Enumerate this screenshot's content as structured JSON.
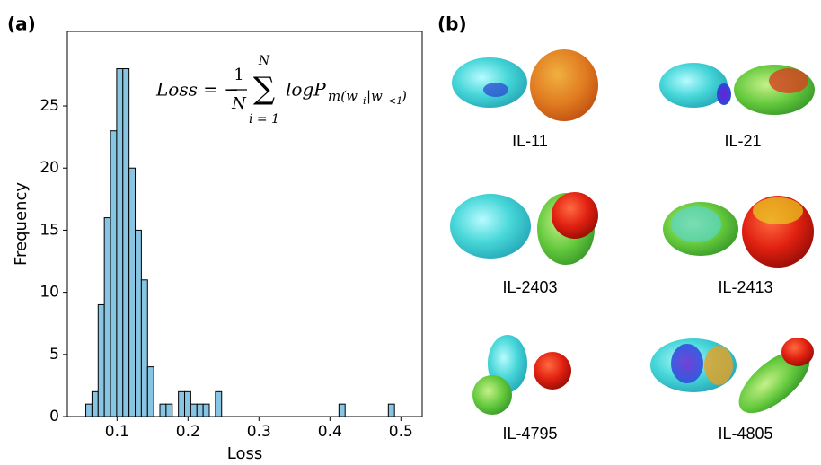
{
  "chart_data": {
    "type": "histogram",
    "panel_label": "(a)",
    "xlabel": "Loss",
    "ylabel": "Frequency",
    "color": "#87c5e3",
    "edgecolor": "#000000",
    "bins": [
      0.056,
      0.0647,
      0.0734,
      0.0821,
      0.0908,
      0.0995,
      0.1082,
      0.1169,
      0.1256,
      0.1343,
      0.143,
      0.1517,
      0.1604,
      0.1691,
      0.1778,
      0.1865,
      0.1952,
      0.2039,
      0.2126,
      0.2213,
      0.23,
      0.2387,
      0.2474,
      0.2561,
      0.2648,
      0.2735,
      0.2822,
      0.2909,
      0.2996,
      0.3083,
      0.317,
      0.3257,
      0.3344,
      0.3431,
      0.3518,
      0.3605,
      0.3692,
      0.3779,
      0.3866,
      0.3953,
      0.404,
      0.4127,
      0.4214,
      0.4301,
      0.4388,
      0.4475,
      0.4562,
      0.4649,
      0.4736,
      0.4823,
      0.491
    ],
    "values": [
      1,
      2,
      9,
      16,
      23,
      28,
      28,
      20,
      15,
      11,
      4,
      0,
      1,
      1,
      0,
      2,
      2,
      1,
      1,
      1,
      0,
      2,
      0,
      0,
      0,
      0,
      0,
      0,
      0,
      0,
      0,
      0,
      0,
      0,
      0,
      0,
      0,
      0,
      0,
      0,
      0,
      1,
      0,
      0,
      0,
      0,
      0,
      0,
      0,
      1
    ],
    "xlim": [
      0.03,
      0.53
    ],
    "ylim": [
      0,
      31
    ],
    "xticks": [
      0.1,
      0.2,
      0.3,
      0.4,
      0.5
    ],
    "yticks": [
      0,
      5,
      10,
      15,
      20,
      25
    ],
    "formula": {
      "lhs": "Loss = −",
      "frac_num": "1",
      "frac_den": "N",
      "sum_top": "N",
      "sum_bottom": "i = 1",
      "body": "logP",
      "sub_a": "m(w",
      "sub_b": "i",
      "sub_c": "|w",
      "sub_d": "<1",
      "sub_e": ")"
    }
  },
  "panel_b": {
    "label": "(b)",
    "molecules": [
      "IL-11",
      "IL-21",
      "IL-2403",
      "IL-2413",
      "IL-4795",
      "IL-4805"
    ]
  }
}
